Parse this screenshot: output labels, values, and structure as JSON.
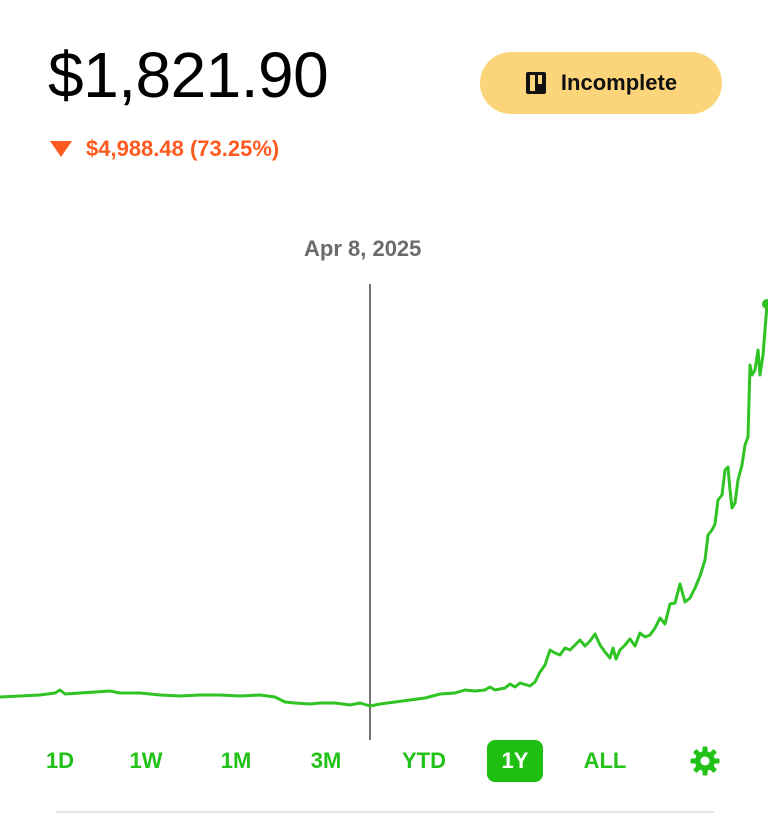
{
  "header": {
    "price": "$1,821.90",
    "change_text": "$4,988.48 (73.25%)",
    "change_direction": "down",
    "change_color": "#ff5a1f"
  },
  "badge": {
    "label": "Incomplete",
    "icon": "book-icon",
    "color": "#fcd47a"
  },
  "scrubber": {
    "date_label": "Apr 8, 2025"
  },
  "ranges": {
    "items": [
      "1D",
      "1W",
      "1M",
      "3M",
      "YTD",
      "1Y",
      "ALL"
    ],
    "active": "1Y",
    "settings_icon": "gear-icon"
  },
  "colors": {
    "line": "#2fc324",
    "accent": "#1fbf11"
  }
}
